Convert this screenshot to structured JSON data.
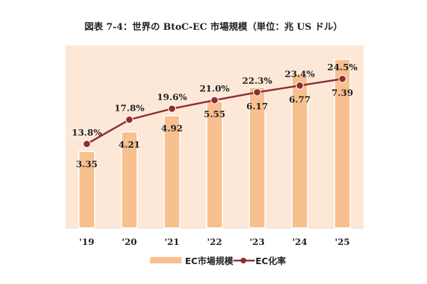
{
  "chart_data": {
    "type": "bar+line",
    "title": "図表 7-4：世界の BtoC-EC 市場規模（単位：兆 US ドル）",
    "categories": [
      "'19",
      "'20",
      "'21",
      "'22",
      "'23",
      "'24",
      "'25"
    ],
    "series": [
      {
        "name": "EC市場規模",
        "type": "bar",
        "axis": "left",
        "values": [
          3.35,
          4.21,
          4.92,
          5.55,
          6.17,
          6.77,
          7.39
        ],
        "labels": [
          "3.35",
          "4.21",
          "4.92",
          "5.55",
          "6.17",
          "6.77",
          "7.39"
        ],
        "color": "#f8c08f"
      },
      {
        "name": "EC化率",
        "type": "line",
        "axis": "right",
        "values": [
          13.8,
          17.8,
          19.6,
          21.0,
          22.3,
          23.4,
          24.5
        ],
        "labels": [
          "13.8%",
          "17.8%",
          "19.6%",
          "21.0%",
          "22.3%",
          "23.4%",
          "24.5%"
        ],
        "color": "#8e2f2f"
      }
    ],
    "ylim": [
      0,
      8
    ],
    "y2lim": [
      0,
      30
    ],
    "xlabel": "",
    "ylabel": "",
    "grid": false,
    "legend": "bottom",
    "background": "#fde8d8"
  }
}
